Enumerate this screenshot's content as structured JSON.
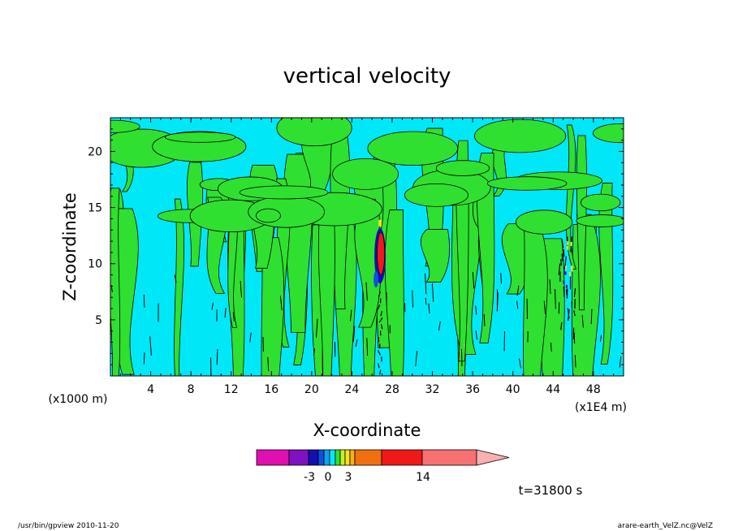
{
  "chart_data": {
    "type": "heatmap",
    "title": "vertical velocity",
    "xlabel": "X-coordinate",
    "ylabel": "Z-coordinate",
    "x_unit_left": "(x1000 m)",
    "x_unit_right": "(x1E4 m)",
    "xlim": [
      0,
      51
    ],
    "ylim": [
      0,
      23
    ],
    "x_ticks": [
      4,
      8,
      12,
      16,
      20,
      24,
      28,
      32,
      36,
      40,
      44,
      48
    ],
    "y_ticks": [
      5,
      10,
      15,
      20
    ],
    "colorbar": {
      "bins": [
        {
          "color": "#e010b0"
        },
        {
          "color": "#8010c0"
        },
        {
          "color": "#1010b0"
        },
        {
          "color": "#1050e0"
        },
        {
          "color": "#10a0f0"
        },
        {
          "color": "#00e8f8"
        },
        {
          "color": "#30e030"
        },
        {
          "color": "#c8f020"
        },
        {
          "color": "#f8e020"
        },
        {
          "color": "#f8b020"
        },
        {
          "color": "#f07010"
        },
        {
          "color": "#f01818"
        },
        {
          "color": "#f87070"
        },
        {
          "color": "#f8b0b0"
        }
      ],
      "tick_labels": [
        "-3",
        "0",
        "3",
        "14"
      ]
    },
    "time_label": "t=31800 s",
    "grid": false,
    "legend": "colorbar-bottom"
  },
  "footer": {
    "left": "/usr/bin/gpview   2010-11-20",
    "right": "arare-earth_VelZ.nc@VelZ"
  },
  "colors": {
    "cyan": "#00e8f8",
    "green": "#30e030",
    "red": "#f01818",
    "blue": "#1010b0",
    "yellow": "#f8e020"
  }
}
